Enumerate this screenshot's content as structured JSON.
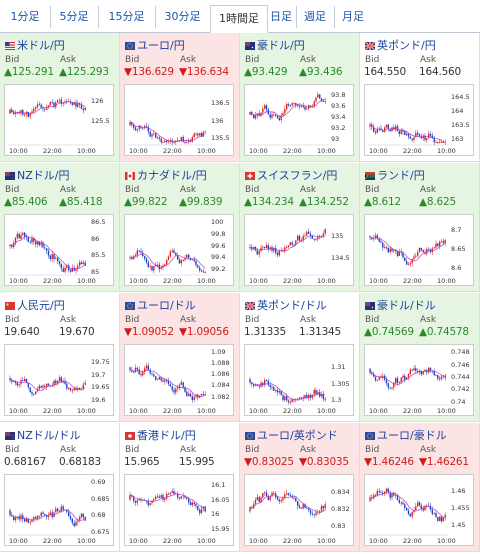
{
  "tabs": [
    "1分足",
    "5分足",
    "15分足",
    "30分足",
    "1時間足",
    "日足",
    "週足",
    "月足"
  ],
  "active_tab": 4,
  "bid_label": "Bid",
  "ask_label": "Ask",
  "x_ticks": [
    "10:00",
    "22:00",
    "10:00"
  ],
  "cells": [
    {
      "name": "米ドル/円",
      "flag": "us",
      "trend": "up",
      "bid": "▲125.291",
      "ask": "▲125.293",
      "yticks": [
        "126",
        "125.5"
      ],
      "range": [
        124.9,
        126.3
      ]
    },
    {
      "name": "ユーロ/円",
      "flag": "eu",
      "trend": "down",
      "bid": "▼136.629",
      "ask": "▼136.634",
      "yticks": [
        "136.5",
        "136",
        "135.5"
      ],
      "range": [
        135.3,
        136.9
      ]
    },
    {
      "name": "豪ドル/円",
      "flag": "au",
      "trend": "up",
      "bid": "▲93.429",
      "ask": "▲93.436",
      "yticks": [
        "93.8",
        "93.6",
        "93.4",
        "93.2",
        "93"
      ],
      "range": [
        92.9,
        93.9
      ]
    },
    {
      "name": "英ポンド/円",
      "flag": "gb",
      "trend": "flat",
      "bid": "164.550",
      "ask": "164.560",
      "yticks": [
        "164.5",
        "164",
        "163.5",
        "163"
      ],
      "range": [
        162.8,
        164.8
      ]
    },
    {
      "name": "NZドル/円",
      "flag": "nz",
      "trend": "up",
      "bid": "▲85.406",
      "ask": "▲85.418",
      "yticks": [
        "86.5",
        "86",
        "85.5",
        "85"
      ],
      "range": [
        84.9,
        86.6
      ]
    },
    {
      "name": "カナダドル/円",
      "flag": "ca",
      "trend": "up",
      "bid": "▲99.822",
      "ask": "▲99.839",
      "yticks": [
        "100",
        "99.8",
        "99.6",
        "99.4",
        "99.2"
      ],
      "range": [
        99.1,
        100.05
      ]
    },
    {
      "name": "スイスフラン/円",
      "flag": "ch",
      "trend": "up",
      "bid": "▲134.234",
      "ask": "▲134.252",
      "yticks": [
        "135",
        "134.5"
      ],
      "range": [
        134.1,
        135.4
      ]
    },
    {
      "name": "ランド/円",
      "flag": "za",
      "trend": "up",
      "bid": "▲8.612",
      "ask": "▲8.625",
      "yticks": [
        "8.7",
        "8.65",
        "8.6"
      ],
      "range": [
        8.58,
        8.73
      ]
    },
    {
      "name": "人民元/円",
      "flag": "cn",
      "trend": "flat",
      "bid": "19.640",
      "ask": "19.670",
      "yticks": [
        "19.75",
        "19.7",
        "19.65",
        "19.6"
      ],
      "range": [
        19.58,
        19.8
      ]
    },
    {
      "name": "ユーロ/ドル",
      "flag": "eu",
      "trend": "down",
      "bid": "▼1.09052",
      "ask": "▼1.09056",
      "yticks": [
        "1.09",
        "1.088",
        "1.086",
        "1.084",
        "1.082"
      ],
      "range": [
        1.0805,
        1.0905
      ]
    },
    {
      "name": "英ポンド/ドル",
      "flag": "gb",
      "trend": "flat",
      "bid": "1.31335",
      "ask": "1.31345",
      "yticks": [
        "1.31",
        "1.305",
        "1.3"
      ],
      "range": [
        1.2985,
        1.3155
      ]
    },
    {
      "name": "豪ドル/ドル",
      "flag": "au",
      "trend": "up",
      "bid": "▲0.74569",
      "ask": "▲0.74578",
      "yticks": [
        "0.748",
        "0.746",
        "0.744",
        "0.742",
        "0.74"
      ],
      "range": [
        0.7395,
        0.7485
      ]
    },
    {
      "name": "NZドル/ドル",
      "flag": "nz",
      "trend": "flat",
      "bid": "0.68167",
      "ask": "0.68183",
      "yticks": [
        "0.69",
        "0.685",
        "0.68",
        "0.675"
      ],
      "range": [
        0.674,
        0.691
      ]
    },
    {
      "name": "香港ドル/円",
      "flag": "hk",
      "trend": "flat",
      "bid": "15.965",
      "ask": "15.995",
      "yticks": [
        "16.1",
        "16.05",
        "16",
        "15.95"
      ],
      "range": [
        15.93,
        16.12
      ]
    },
    {
      "name": "ユーロ/英ポンド",
      "flag": "eu",
      "trend": "down",
      "bid": "▼0.83025",
      "ask": "▼0.83035",
      "yticks": [
        "0.834",
        "0.832",
        "0.83"
      ],
      "range": [
        0.829,
        0.8355
      ]
    },
    {
      "name": "ユーロ/豪ドル",
      "flag": "eu",
      "trend": "down",
      "bid": "▼1.46246",
      "ask": "▼1.46261",
      "yticks": [
        "1.46",
        "1.455",
        "1.45"
      ],
      "range": [
        1.447,
        1.4635
      ]
    }
  ]
}
